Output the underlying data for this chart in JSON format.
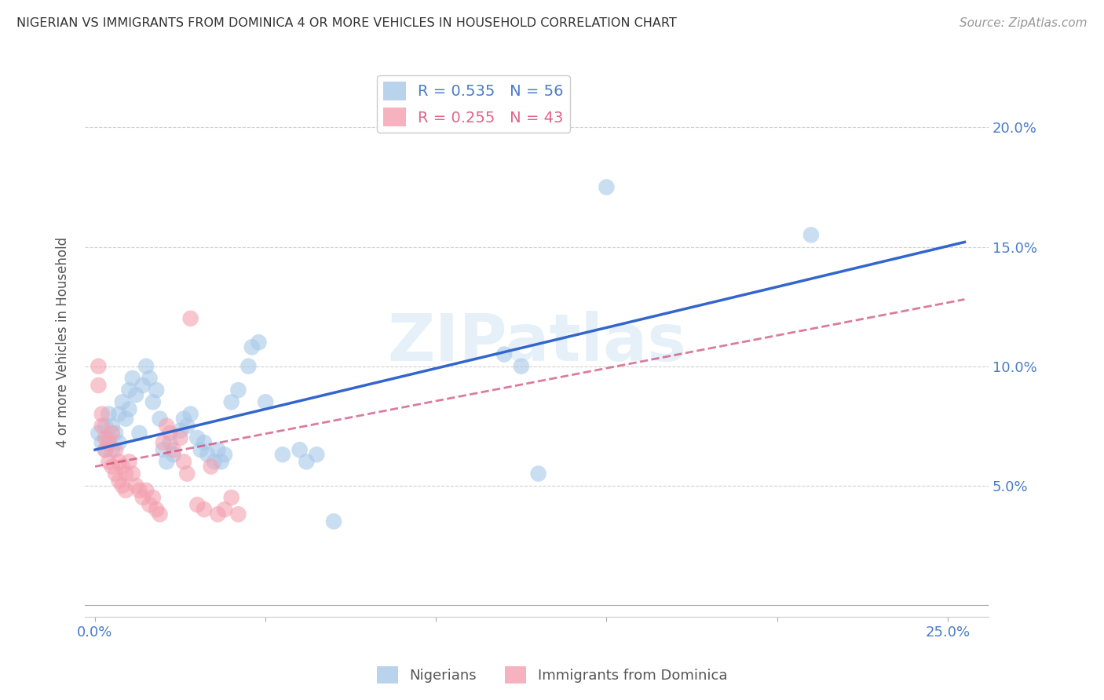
{
  "title": "NIGERIAN VS IMMIGRANTS FROM DOMINICA 4 OR MORE VEHICLES IN HOUSEHOLD CORRELATION CHART",
  "source": "Source: ZipAtlas.com",
  "ylabel": "4 or more Vehicles in Household",
  "x_ticks": [
    0.0,
    0.05,
    0.1,
    0.15,
    0.2,
    0.25
  ],
  "x_tick_labels": [
    "0.0%",
    "",
    "",
    "",
    "",
    "25.0%"
  ],
  "y_ticks": [
    0.05,
    0.1,
    0.15,
    0.2
  ],
  "y_tick_labels_right": [
    "5.0%",
    "10.0%",
    "15.0%",
    "20.0%"
  ],
  "xlim": [
    -0.003,
    0.262
  ],
  "ylim": [
    -0.005,
    0.225
  ],
  "blue_R": 0.535,
  "blue_N": 56,
  "pink_R": 0.255,
  "pink_N": 43,
  "legend_label_blue": "Nigerians",
  "legend_label_pink": "Immigrants from Dominica",
  "watermark": "ZIPatlas",
  "background_color": "#ffffff",
  "grid_color": "#d0d0d0",
  "title_color": "#333333",
  "blue_color": "#a8c8e8",
  "blue_line_color": "#3366cc",
  "pink_color": "#f4a0b0",
  "pink_line_color": "#cc4477",
  "right_tick_color": "#4a7cc7",
  "blue_scatter": [
    [
      0.001,
      0.072
    ],
    [
      0.002,
      0.068
    ],
    [
      0.003,
      0.065
    ],
    [
      0.003,
      0.075
    ],
    [
      0.004,
      0.08
    ],
    [
      0.004,
      0.07
    ],
    [
      0.005,
      0.075
    ],
    [
      0.005,
      0.065
    ],
    [
      0.006,
      0.072
    ],
    [
      0.007,
      0.068
    ],
    [
      0.007,
      0.08
    ],
    [
      0.008,
      0.085
    ],
    [
      0.009,
      0.078
    ],
    [
      0.01,
      0.09
    ],
    [
      0.01,
      0.082
    ],
    [
      0.011,
      0.095
    ],
    [
      0.012,
      0.088
    ],
    [
      0.013,
      0.072
    ],
    [
      0.014,
      0.092
    ],
    [
      0.015,
      0.1
    ],
    [
      0.016,
      0.095
    ],
    [
      0.017,
      0.085
    ],
    [
      0.018,
      0.09
    ],
    [
      0.019,
      0.078
    ],
    [
      0.02,
      0.065
    ],
    [
      0.021,
      0.06
    ],
    [
      0.022,
      0.068
    ],
    [
      0.023,
      0.063
    ],
    [
      0.025,
      0.073
    ],
    [
      0.026,
      0.078
    ],
    [
      0.027,
      0.075
    ],
    [
      0.028,
      0.08
    ],
    [
      0.03,
      0.07
    ],
    [
      0.031,
      0.065
    ],
    [
      0.032,
      0.068
    ],
    [
      0.033,
      0.063
    ],
    [
      0.035,
      0.06
    ],
    [
      0.036,
      0.065
    ],
    [
      0.037,
      0.06
    ],
    [
      0.038,
      0.063
    ],
    [
      0.04,
      0.085
    ],
    [
      0.042,
      0.09
    ],
    [
      0.045,
      0.1
    ],
    [
      0.046,
      0.108
    ],
    [
      0.048,
      0.11
    ],
    [
      0.05,
      0.085
    ],
    [
      0.055,
      0.063
    ],
    [
      0.06,
      0.065
    ],
    [
      0.062,
      0.06
    ],
    [
      0.065,
      0.063
    ],
    [
      0.07,
      0.035
    ],
    [
      0.12,
      0.105
    ],
    [
      0.125,
      0.1
    ],
    [
      0.13,
      0.055
    ],
    [
      0.15,
      0.175
    ],
    [
      0.21,
      0.155
    ]
  ],
  "pink_scatter": [
    [
      0.001,
      0.1
    ],
    [
      0.001,
      0.092
    ],
    [
      0.002,
      0.08
    ],
    [
      0.002,
      0.075
    ],
    [
      0.003,
      0.07
    ],
    [
      0.003,
      0.065
    ],
    [
      0.004,
      0.068
    ],
    [
      0.004,
      0.06
    ],
    [
      0.005,
      0.072
    ],
    [
      0.005,
      0.058
    ],
    [
      0.006,
      0.065
    ],
    [
      0.006,
      0.055
    ],
    [
      0.007,
      0.06
    ],
    [
      0.007,
      0.052
    ],
    [
      0.008,
      0.058
    ],
    [
      0.008,
      0.05
    ],
    [
      0.009,
      0.055
    ],
    [
      0.009,
      0.048
    ],
    [
      0.01,
      0.06
    ],
    [
      0.011,
      0.055
    ],
    [
      0.012,
      0.05
    ],
    [
      0.013,
      0.048
    ],
    [
      0.014,
      0.045
    ],
    [
      0.015,
      0.048
    ],
    [
      0.016,
      0.042
    ],
    [
      0.017,
      0.045
    ],
    [
      0.018,
      0.04
    ],
    [
      0.019,
      0.038
    ],
    [
      0.02,
      0.068
    ],
    [
      0.021,
      0.075
    ],
    [
      0.022,
      0.072
    ],
    [
      0.023,
      0.065
    ],
    [
      0.025,
      0.07
    ],
    [
      0.026,
      0.06
    ],
    [
      0.027,
      0.055
    ],
    [
      0.028,
      0.12
    ],
    [
      0.03,
      0.042
    ],
    [
      0.032,
      0.04
    ],
    [
      0.034,
      0.058
    ],
    [
      0.036,
      0.038
    ],
    [
      0.038,
      0.04
    ],
    [
      0.04,
      0.045
    ],
    [
      0.042,
      0.038
    ]
  ],
  "blue_line_x": [
    0.0,
    0.255
  ],
  "blue_line_y": [
    0.065,
    0.152
  ],
  "pink_line_x": [
    0.0,
    0.255
  ],
  "pink_line_y": [
    0.058,
    0.128
  ]
}
